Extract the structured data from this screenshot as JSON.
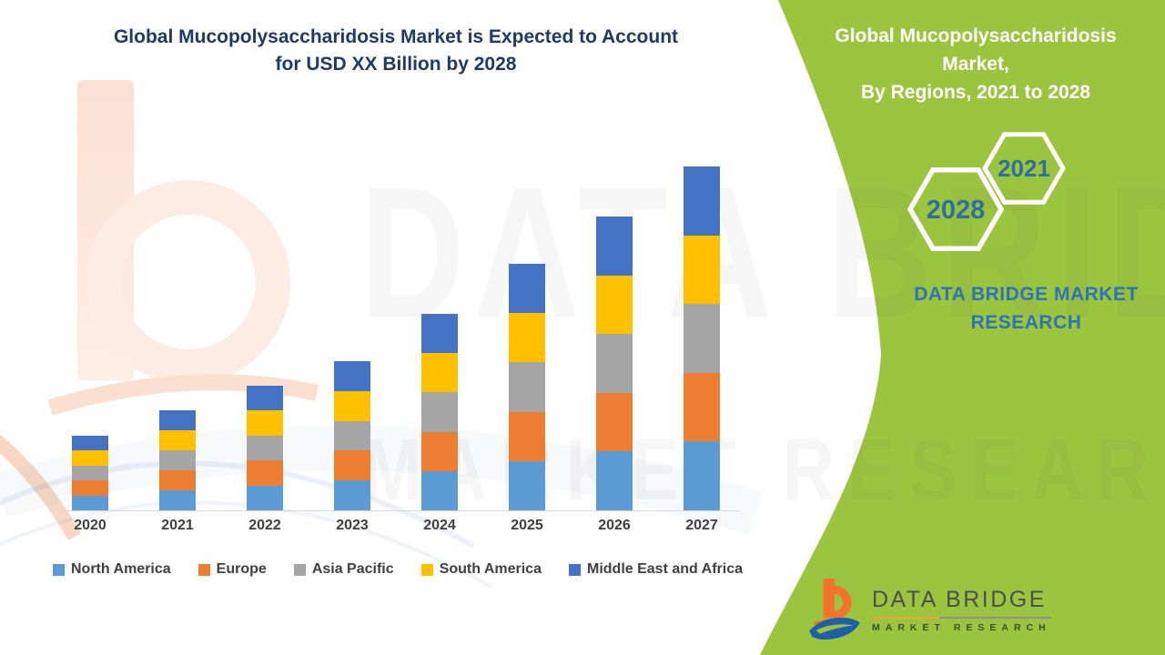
{
  "header": {
    "title_line1": "Global Mucopolysaccharidosis Market is Expected to Account",
    "title_line2": "for USD XX Billion by 2028"
  },
  "side_panel": {
    "accent_green": "#9bc53e",
    "title_line1": "Global Mucopolysaccharidosis Market,",
    "title_line2": "By Regions, 2021 to 2028",
    "hexagons": [
      {
        "year": "2028"
      },
      {
        "year": "2021"
      }
    ],
    "brand_line": "DATA BRIDGE MARKET RESEARCH"
  },
  "brand_logo": {
    "name": "DATA BRIDGE",
    "tagline": "MARKET RESEARCH",
    "icon": "data-bridge-b-icon",
    "orange": "#f4732a",
    "blue": "#1f5ea8"
  },
  "watermark": {
    "ghost_top": "DATA BRIDGE",
    "ghost_bottom": "MARKET RESEARCH"
  },
  "chart_data": {
    "type": "bar",
    "stacked": true,
    "title": "Global Mucopolysaccharidosis Market is Expected to Account for USD XX Billion by 2028",
    "xlabel": "",
    "ylabel": "",
    "y_axis_visible": false,
    "grid": false,
    "legend_position": "bottom",
    "values_unit": "relative units (y-axis unlabeled, market shown as USD XX Billion)",
    "ylim": [
      0,
      40
    ],
    "categories": [
      "2020",
      "2021",
      "2022",
      "2023",
      "2024",
      "2025",
      "2026",
      "2027"
    ],
    "totals": [
      8.2,
      11.0,
      13.7,
      16.4,
      21.6,
      27.1,
      32.3,
      37.8
    ],
    "series": [
      {
        "name": "North America",
        "color": "#5B9BD5",
        "values": [
          1.64,
          2.2,
          2.74,
          3.28,
          4.32,
          5.42,
          6.46,
          7.56
        ]
      },
      {
        "name": "Europe",
        "color": "#ED7D31",
        "values": [
          1.64,
          2.2,
          2.74,
          3.28,
          4.32,
          5.42,
          6.46,
          7.56
        ]
      },
      {
        "name": "Asia Pacific",
        "color": "#A5A5A5",
        "values": [
          1.64,
          2.2,
          2.74,
          3.28,
          4.32,
          5.42,
          6.46,
          7.56
        ]
      },
      {
        "name": "South America",
        "color": "#FFC000",
        "values": [
          1.64,
          2.2,
          2.74,
          3.28,
          4.32,
          5.42,
          6.46,
          7.56
        ]
      },
      {
        "name": "Middle East and Africa",
        "color": "#4472C4",
        "values": [
          1.64,
          2.2,
          2.74,
          3.28,
          4.32,
          5.42,
          6.46,
          7.56
        ]
      }
    ]
  }
}
